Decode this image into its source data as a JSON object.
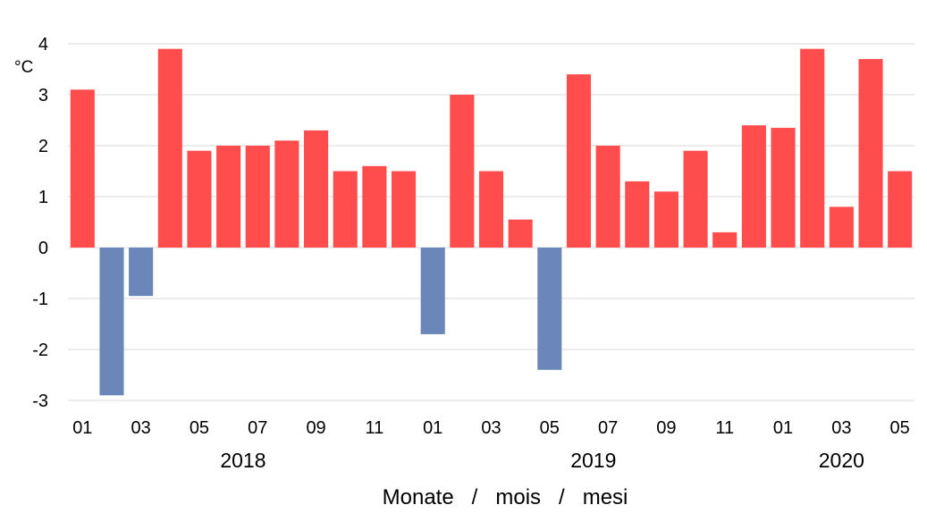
{
  "chart_data": {
    "type": "bar",
    "title": "",
    "xlabel": "Monate   /   mois   /   mesi",
    "ylabel": "°C",
    "ylim": [
      -3,
      4
    ],
    "yticks": [
      "4",
      "3",
      "2",
      "1",
      "0",
      "-1",
      "-2",
      "-3"
    ],
    "ytick_values": [
      4,
      3,
      2,
      1,
      0,
      -1,
      -2,
      -3
    ],
    "grid": true,
    "legend": "none",
    "colors": {
      "positive": "#ff4d4d",
      "negative": "#6b86b8",
      "grid": "#d9d9d9"
    },
    "categories": [
      "01",
      "02",
      "03",
      "04",
      "05",
      "06",
      "07",
      "08",
      "09",
      "10",
      "11",
      "12",
      "01",
      "02",
      "03",
      "04",
      "05",
      "06",
      "07",
      "08",
      "09",
      "10",
      "11",
      "12",
      "01",
      "02",
      "03",
      "04",
      "05"
    ],
    "xtick_labels_shown": [
      "01",
      "",
      "03",
      "",
      "05",
      "",
      "07",
      "",
      "09",
      "",
      "11",
      "",
      "01",
      "",
      "03",
      "",
      "05",
      "",
      "07",
      "",
      "09",
      "",
      "11",
      "",
      "01",
      "",
      "03",
      "",
      "05"
    ],
    "years": [
      {
        "label": "2018",
        "start_index": 0,
        "end_index": 11
      },
      {
        "label": "2019",
        "start_index": 12,
        "end_index": 23
      },
      {
        "label": "2020",
        "start_index": 24,
        "end_index": 28
      }
    ],
    "values": [
      3.1,
      -2.9,
      -0.95,
      3.9,
      1.9,
      2.0,
      2.0,
      2.1,
      2.3,
      1.5,
      1.6,
      1.5,
      -1.7,
      3.0,
      1.5,
      0.55,
      -2.4,
      3.4,
      2.0,
      1.3,
      1.1,
      1.9,
      0.3,
      2.4,
      2.35,
      3.9,
      0.8,
      3.7,
      1.5
    ]
  }
}
